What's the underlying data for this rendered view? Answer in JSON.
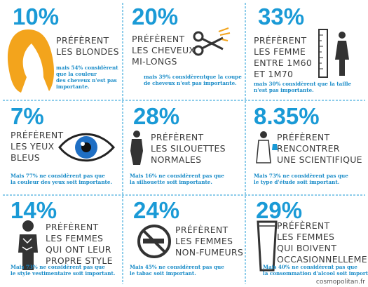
{
  "cells": [
    {
      "percent": "10%",
      "heading": [
        "PRÉFÈRENT",
        "LES BLONDES"
      ],
      "note": [
        "mais 54% considèrent",
        "que la couleur",
        "des cheveux n'est pas",
        "importante."
      ]
    },
    {
      "percent": "20%",
      "heading": [
        "PRÉFÈRENT",
        "LES CHEVEUX",
        "MI-LONGS"
      ],
      "note": [
        "mais 39% considèrentque la coupe",
        "de cheveux n'est pas importante."
      ]
    },
    {
      "percent": "33%",
      "heading": [
        "PRÉFÈRENT",
        "LES FEMME",
        "ENTRE 1M60",
        "ET 1M70"
      ],
      "note": [
        "mais 30% considèrent que la taille",
        "n'est pas importante."
      ]
    },
    {
      "percent": "7%",
      "heading": [
        "PRÉFÈRENT",
        "LES YEUX",
        "BLEUS"
      ],
      "note": [
        "Mais 77% ne considèrent pas que",
        "la couleur des yeux soit importante."
      ]
    },
    {
      "percent": "28%",
      "heading": [
        "PRÉFÈRENT",
        "LES SILOUETTES",
        "NORMALES"
      ],
      "note": [
        "Mais 16% ne considèrent pas que",
        "la silhouette soit importante."
      ]
    },
    {
      "percent": "8.35%",
      "heading": [
        "PRÉFÈRENT",
        "RENCONTRER",
        "UNE SCIENTIFIQUE"
      ],
      "note": [
        "Mais 73% ne considèrent pas que",
        "le type d'étude soit important."
      ]
    },
    {
      "percent": "14%",
      "heading": [
        "PRÉFÈRENT",
        "LES FEMMES",
        "QUI ONT LEUR",
        "PROPRE STYLE"
      ],
      "note": [
        "Mais 73% ne considèrent pas que",
        "le style vestimentaire soit important."
      ]
    },
    {
      "percent": "24%",
      "heading": [
        "PRÉFÈRENT",
        "LES FEMMES",
        "NON-FUMEURS"
      ],
      "note": [
        "Mais 45% ne considèrent pas que",
        "le tabac soit important."
      ]
    },
    {
      "percent": "29%",
      "heading": [
        "PRÉFÈRENT",
        "LES FEMMES",
        "QUI BOIVENT",
        "OCCASIONNELLEMENT"
      ],
      "note": [
        "Mais 40% ne considèrent pas que",
        "la consommation d'alcool soit importante."
      ]
    }
  ],
  "watermark": "cosmopolitan.fr"
}
